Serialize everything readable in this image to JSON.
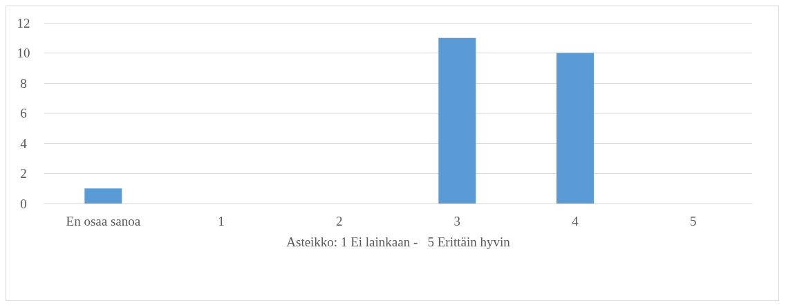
{
  "chart_data": {
    "type": "bar",
    "xlabel": "Asteikko: 1 Ei lainkaan -   5 Erittäin hyvin",
    "categories": [
      "En osaa sanoa",
      "1",
      "2",
      "3",
      "4",
      "5"
    ],
    "values": [
      1,
      0,
      0,
      11,
      10,
      0
    ],
    "color": "#5b9bd5",
    "ylim": [
      0,
      12
    ],
    "yticks": [
      0,
      2,
      4,
      6,
      8,
      10,
      12
    ],
    "grid": "y"
  }
}
